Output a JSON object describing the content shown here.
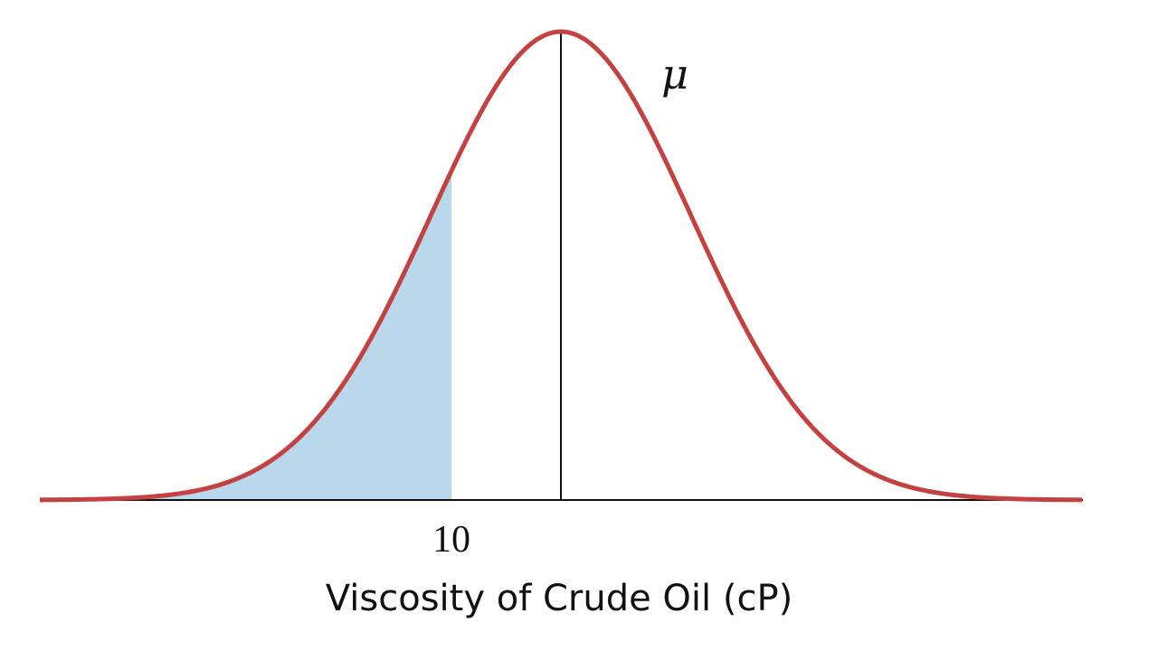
{
  "chart_data": {
    "type": "area",
    "distribution": "normal",
    "mean_label": "μ",
    "shaded_region": {
      "side": "left",
      "upper_bound": 10,
      "upper_bound_label": "10"
    },
    "xlabel": "Viscosity of Crude Oil (cP)",
    "colors": {
      "curve": "#c44141",
      "shade": "#b9d8ec",
      "axis": "#111111",
      "mean_line": "#111111"
    }
  }
}
